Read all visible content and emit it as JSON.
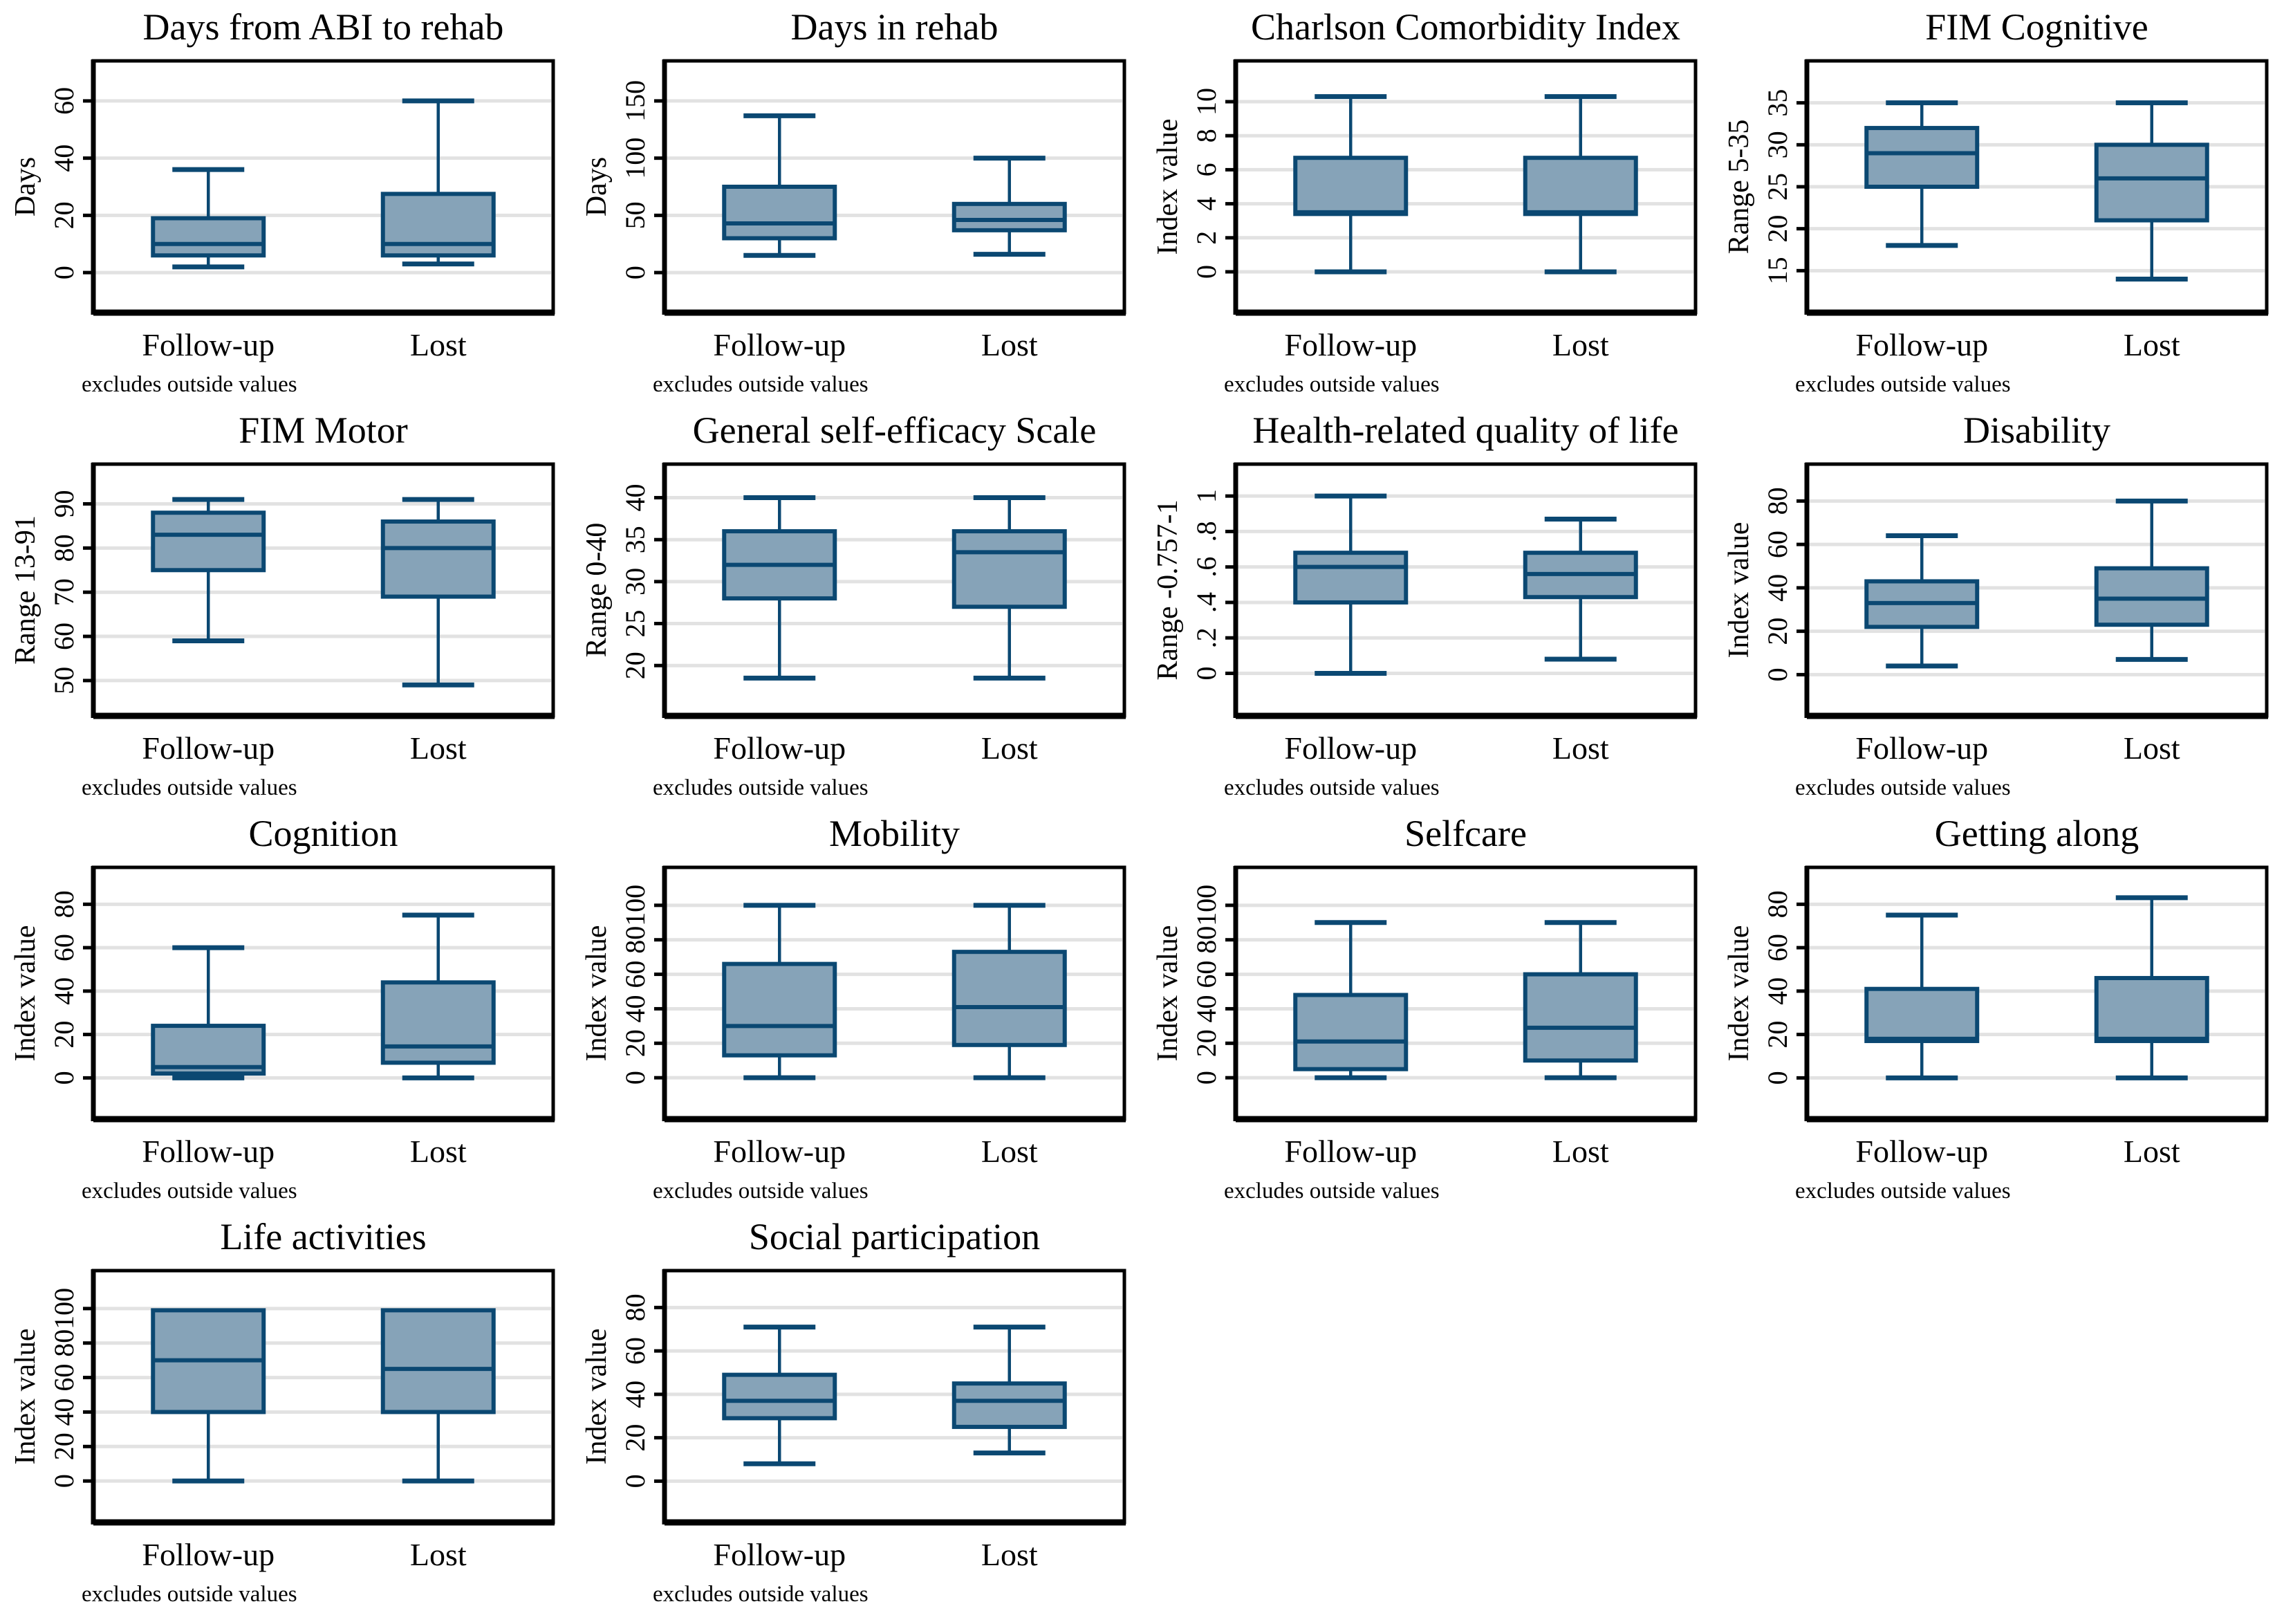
{
  "page": {
    "background": "#ffffff",
    "kind": "stata-boxplot-panel",
    "columns": 4
  },
  "style": {
    "box_fill": "#86a3b8",
    "box_stroke": "#0b4872",
    "grid_color": "#e2e2e2",
    "axis_color": "#000000",
    "text_color": "#000000"
  },
  "group_labels": [
    "Follow-up",
    "Lost"
  ],
  "note_label": "excludes outside values",
  "chart_data": [
    {
      "type": "box",
      "title": "Days from ABI to rehab",
      "ylabel": "Days",
      "yticks": [
        0,
        20,
        40,
        60
      ],
      "ytick_labels": [
        "0",
        "20",
        "40",
        "60"
      ],
      "ylim": [
        -14,
        74
      ],
      "categories": [
        "Follow-up",
        "Lost"
      ],
      "note": "excludes outside values",
      "series": [
        {
          "name": "Follow-up",
          "whislo": 2,
          "q1": 6,
          "med": 10,
          "q3": 19,
          "whishi": 36
        },
        {
          "name": "Lost",
          "whislo": 3,
          "q1": 6,
          "med": 10,
          "q3": 27.5,
          "whishi": 60
        }
      ]
    },
    {
      "type": "box",
      "title": "Days in rehab",
      "ylabel": "Days",
      "yticks": [
        0,
        50,
        100,
        150
      ],
      "ytick_labels": [
        "0",
        "50",
        "100",
        "150"
      ],
      "ylim": [
        -35,
        185
      ],
      "categories": [
        "Follow-up",
        "Lost"
      ],
      "note": "excludes outside values",
      "series": [
        {
          "name": "Follow-up",
          "whislo": 15,
          "q1": 30,
          "med": 43,
          "q3": 75,
          "whishi": 137
        },
        {
          "name": "Lost",
          "whislo": 16,
          "q1": 37,
          "med": 46,
          "q3": 60,
          "whishi": 100
        }
      ]
    },
    {
      "type": "box",
      "title": "Charlson Comorbidity Index",
      "ylabel": "Index value",
      "yticks": [
        0,
        2,
        4,
        6,
        8,
        10
      ],
      "ytick_labels": [
        "0",
        "2",
        "4",
        "6",
        "8",
        "10"
      ],
      "ylim": [
        -2.4,
        12.4
      ],
      "categories": [
        "Follow-up",
        "Lost"
      ],
      "note": "excludes outside values",
      "series": [
        {
          "name": "Follow-up",
          "whislo": 0,
          "q1": 3.4,
          "med": 3.5,
          "q3": 6.7,
          "whishi": 10.3
        },
        {
          "name": "Lost",
          "whislo": 0,
          "q1": 3.4,
          "med": 3.5,
          "q3": 6.7,
          "whishi": 10.3
        }
      ]
    },
    {
      "type": "box",
      "title": "FIM Cognitive",
      "ylabel": "Range 5-35",
      "yticks": [
        15,
        20,
        25,
        30,
        35
      ],
      "ytick_labels": [
        "15",
        "20",
        "25",
        "30",
        "35"
      ],
      "ylim": [
        10,
        40
      ],
      "categories": [
        "Follow-up",
        "Lost"
      ],
      "note": "excludes outside values",
      "series": [
        {
          "name": "Follow-up",
          "whislo": 18,
          "q1": 25,
          "med": 29,
          "q3": 32,
          "whishi": 35
        },
        {
          "name": "Lost",
          "whislo": 14,
          "q1": 21,
          "med": 26,
          "q3": 30,
          "whishi": 35
        }
      ]
    },
    {
      "type": "box",
      "title": "FIM Motor",
      "ylabel": "Range 13-91",
      "yticks": [
        50,
        60,
        70,
        80,
        90
      ],
      "ytick_labels": [
        "50",
        "60",
        "70",
        "80",
        "90"
      ],
      "ylim": [
        42,
        99
      ],
      "categories": [
        "Follow-up",
        "Lost"
      ],
      "note": "excludes outside values",
      "series": [
        {
          "name": "Follow-up",
          "whislo": 59,
          "q1": 75,
          "med": 83,
          "q3": 88,
          "whishi": 91
        },
        {
          "name": "Lost",
          "whislo": 49,
          "q1": 69,
          "med": 80,
          "q3": 86,
          "whishi": 91
        }
      ]
    },
    {
      "type": "box",
      "title": "General self-efficacy Scale",
      "ylabel": "Range 0-40",
      "yticks": [
        20,
        25,
        30,
        35,
        40
      ],
      "ytick_labels": [
        "20",
        "25",
        "30",
        "35",
        "40"
      ],
      "ylim": [
        14,
        44
      ],
      "categories": [
        "Follow-up",
        "Lost"
      ],
      "note": "excludes outside values",
      "series": [
        {
          "name": "Follow-up",
          "whislo": 18.5,
          "q1": 28,
          "med": 32,
          "q3": 36,
          "whishi": 40
        },
        {
          "name": "Lost",
          "whislo": 18.5,
          "q1": 27,
          "med": 33.5,
          "q3": 36,
          "whishi": 40
        }
      ]
    },
    {
      "type": "box",
      "title": "Health-related quality of life",
      "ylabel": "Range -0.757-1",
      "yticks": [
        0,
        0.2,
        0.4,
        0.6,
        0.8,
        1
      ],
      "ytick_labels": [
        "0",
        ".2",
        ".4",
        ".6",
        ".8",
        "1"
      ],
      "ylim": [
        -0.24,
        1.18
      ],
      "categories": [
        "Follow-up",
        "Lost"
      ],
      "note": "excludes outside values",
      "series": [
        {
          "name": "Follow-up",
          "whislo": 0,
          "q1": 0.4,
          "med": 0.6,
          "q3": 0.68,
          "whishi": 1.0
        },
        {
          "name": "Lost",
          "whislo": 0.08,
          "q1": 0.43,
          "med": 0.56,
          "q3": 0.68,
          "whishi": 0.87
        }
      ]
    },
    {
      "type": "box",
      "title": "Disability",
      "ylabel": "Index value",
      "yticks": [
        0,
        20,
        40,
        60,
        80
      ],
      "ytick_labels": [
        "0",
        "20",
        "40",
        "60",
        "80"
      ],
      "ylim": [
        -19,
        97
      ],
      "categories": [
        "Follow-up",
        "Lost"
      ],
      "note": "excludes outside values",
      "series": [
        {
          "name": "Follow-up",
          "whislo": 4,
          "q1": 22,
          "med": 33,
          "q3": 43,
          "whishi": 64
        },
        {
          "name": "Lost",
          "whislo": 7,
          "q1": 23,
          "med": 35,
          "q3": 49,
          "whishi": 80
        }
      ]
    },
    {
      "type": "box",
      "title": "Cognition",
      "ylabel": "Index value",
      "yticks": [
        0,
        20,
        40,
        60,
        80
      ],
      "ytick_labels": [
        "0",
        "20",
        "40",
        "60",
        "80"
      ],
      "ylim": [
        -19,
        97
      ],
      "categories": [
        "Follow-up",
        "Lost"
      ],
      "note": "excludes outside values",
      "series": [
        {
          "name": "Follow-up",
          "whislo": 0,
          "q1": 2,
          "med": 5,
          "q3": 24,
          "whishi": 60
        },
        {
          "name": "Lost",
          "whislo": 0,
          "q1": 7,
          "med": 14.5,
          "q3": 44,
          "whishi": 75
        }
      ]
    },
    {
      "type": "box",
      "title": "Mobility",
      "ylabel": "Index value",
      "yticks": [
        0,
        20,
        40,
        60,
        80,
        100
      ],
      "ytick_labels": [
        "0",
        "20",
        "40",
        "60",
        "80",
        "100"
      ],
      "ylim": [
        -24,
        122
      ],
      "categories": [
        "Follow-up",
        "Lost"
      ],
      "note": "excludes outside values",
      "series": [
        {
          "name": "Follow-up",
          "whislo": 0,
          "q1": 13,
          "med": 30,
          "q3": 66,
          "whishi": 100
        },
        {
          "name": "Lost",
          "whislo": 0,
          "q1": 19,
          "med": 41,
          "q3": 73,
          "whishi": 100
        }
      ]
    },
    {
      "type": "box",
      "title": "Selfcare",
      "ylabel": "Index value",
      "yticks": [
        0,
        20,
        40,
        60,
        80,
        100
      ],
      "ytick_labels": [
        "0",
        "20",
        "40",
        "60",
        "80",
        "100"
      ],
      "ylim": [
        -24,
        122
      ],
      "categories": [
        "Follow-up",
        "Lost"
      ],
      "note": "excludes outside values",
      "series": [
        {
          "name": "Follow-up",
          "whislo": 0,
          "q1": 5,
          "med": 21,
          "q3": 48,
          "whishi": 90
        },
        {
          "name": "Lost",
          "whislo": 0,
          "q1": 10,
          "med": 29,
          "q3": 60,
          "whishi": 90
        }
      ]
    },
    {
      "type": "box",
      "title": "Getting along",
      "ylabel": "Index value",
      "yticks": [
        0,
        20,
        40,
        60,
        80
      ],
      "ytick_labels": [
        "0",
        "20",
        "40",
        "60",
        "80"
      ],
      "ylim": [
        -19,
        97
      ],
      "categories": [
        "Follow-up",
        "Lost"
      ],
      "note": "excludes outside values",
      "series": [
        {
          "name": "Follow-up",
          "whislo": 0,
          "q1": 17,
          "med": 18,
          "q3": 41,
          "whishi": 75
        },
        {
          "name": "Lost",
          "whislo": 0,
          "q1": 17,
          "med": 18,
          "q3": 46,
          "whishi": 83
        }
      ]
    },
    {
      "type": "box",
      "title": "Life activities",
      "ylabel": "Index value",
      "yticks": [
        0,
        20,
        40,
        60,
        80,
        100
      ],
      "ytick_labels": [
        "0",
        "20",
        "40",
        "60",
        "80",
        "100"
      ],
      "ylim": [
        -24,
        122
      ],
      "categories": [
        "Follow-up",
        "Lost"
      ],
      "note": "excludes outside values",
      "series": [
        {
          "name": "Follow-up",
          "whislo": 0,
          "q1": 40,
          "med": 70,
          "q3": 99,
          "whishi": 99
        },
        {
          "name": "Lost",
          "whislo": 0,
          "q1": 40,
          "med": 65,
          "q3": 99,
          "whishi": 99
        }
      ]
    },
    {
      "type": "box",
      "title": "Social participation",
      "ylabel": "Index value",
      "yticks": [
        0,
        20,
        40,
        60,
        80
      ],
      "ytick_labels": [
        "0",
        "20",
        "40",
        "60",
        "80"
      ],
      "ylim": [
        -19,
        97
      ],
      "categories": [
        "Follow-up",
        "Lost"
      ],
      "note": "excludes outside values",
      "series": [
        {
          "name": "Follow-up",
          "whislo": 8,
          "q1": 29,
          "med": 37,
          "q3": 49,
          "whishi": 71
        },
        {
          "name": "Lost",
          "whislo": 13,
          "q1": 25,
          "med": 37,
          "q3": 45,
          "whishi": 71
        }
      ]
    }
  ]
}
